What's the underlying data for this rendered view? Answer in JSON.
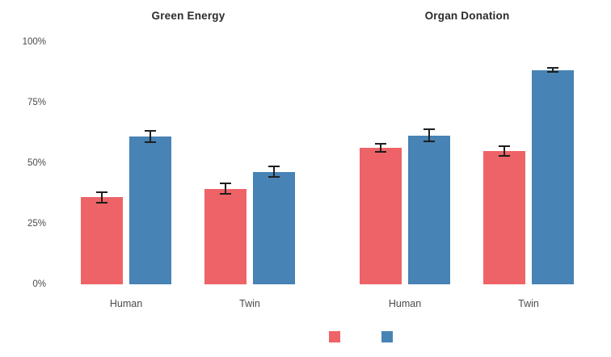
{
  "chart_data": {
    "type": "bar",
    "title": "",
    "y_axis": {
      "tick_labels": [
        "100%",
        "75%",
        "50%",
        "25%",
        "0%"
      ],
      "tick_values": [
        100,
        75,
        50,
        25,
        0
      ],
      "ylim": [
        0,
        100
      ],
      "unit": "percent"
    },
    "grid": false,
    "panels": [
      {
        "title": "Green Energy",
        "categories": [
          "Human",
          "Twin"
        ],
        "series": [
          {
            "name": "red-series",
            "color": "#ee6367",
            "values": [
              36,
              39.5
            ],
            "errors": [
              2.5,
              2.5
            ]
          },
          {
            "name": "blue-series",
            "color": "#4783b4",
            "values": [
              61,
              46.5
            ],
            "errors": [
              2.8,
              2.5
            ]
          }
        ]
      },
      {
        "title": "Organ Donation",
        "categories": [
          "Human",
          "Twin"
        ],
        "series": [
          {
            "name": "red-series",
            "color": "#ee6367",
            "values": [
              56.5,
              55
            ],
            "errors": [
              2.0,
              2.3
            ]
          },
          {
            "name": "blue-series",
            "color": "#4783b4",
            "values": [
              61.5,
              88.5
            ],
            "errors": [
              2.8,
              1.2
            ]
          }
        ]
      }
    ],
    "legend": {
      "position": "bottom",
      "entries": [
        {
          "label": "",
          "color": "#ee6367"
        },
        {
          "label": "",
          "color": "#4783b4"
        }
      ]
    }
  }
}
